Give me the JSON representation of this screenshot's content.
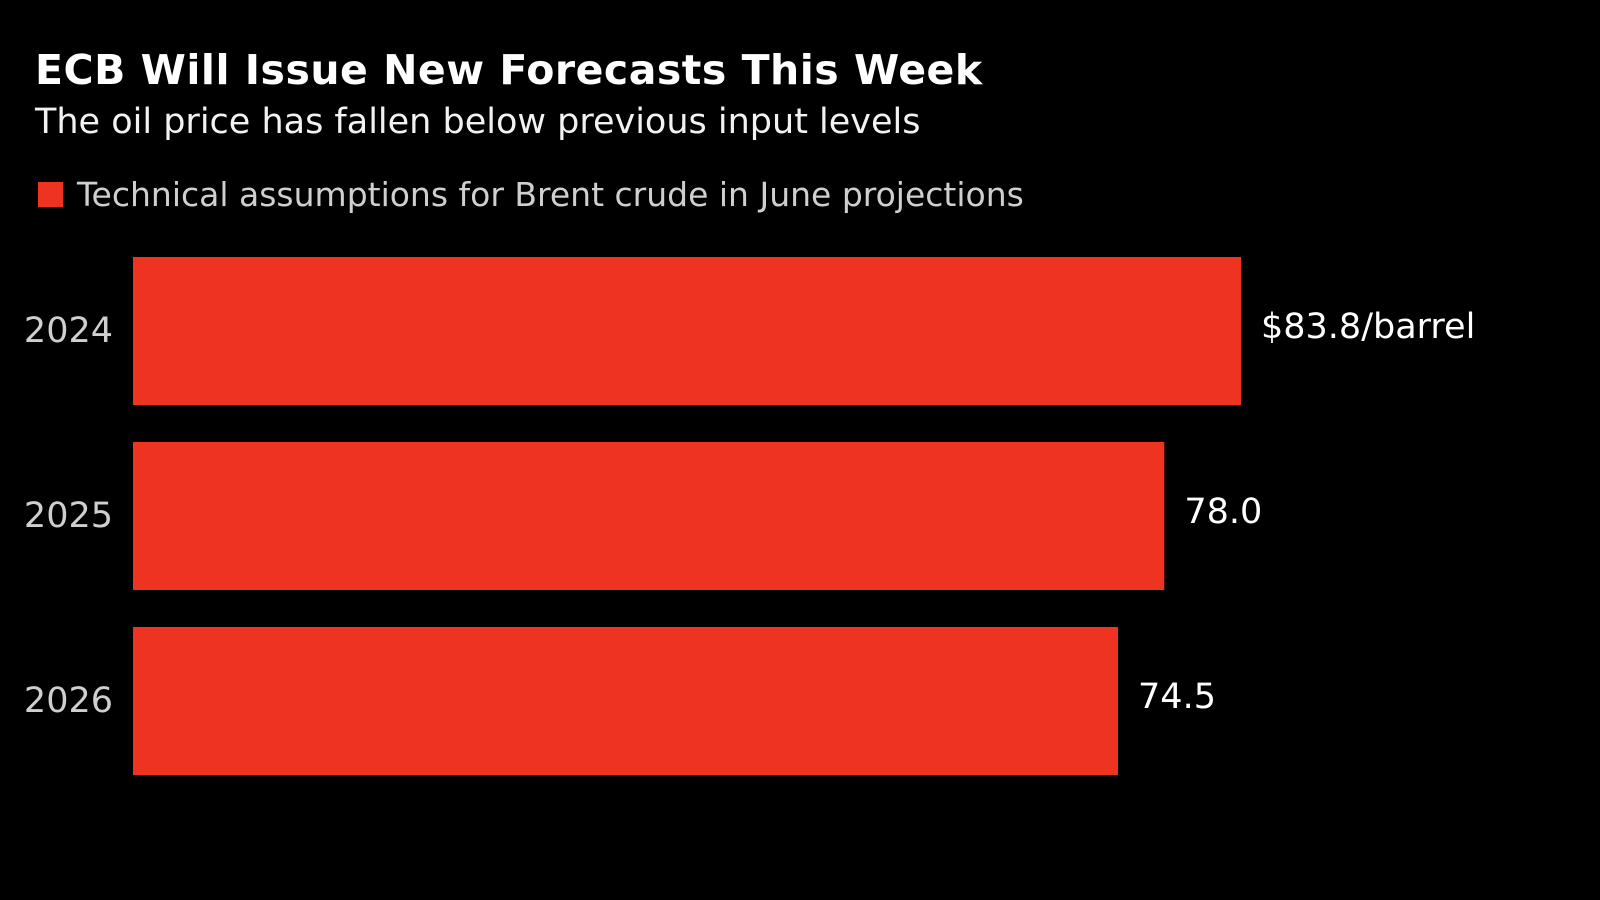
{
  "colors": {
    "background": "#000000",
    "bar": "#ee3420",
    "text": "#ffffff",
    "muted_text": "#cfcfcf"
  },
  "chart_data": {
    "type": "bar",
    "orientation": "horizontal",
    "title": "ECB Will Issue New Forecasts This Week",
    "subtitle": "The oil price has fallen below previous input levels",
    "legend": "top-left",
    "grid": false,
    "categories": [
      "2024",
      "2025",
      "2026"
    ],
    "series": [
      {
        "name": "Technical assumptions for Brent crude in June projections",
        "values": [
          83.8,
          78.0,
          74.5
        ]
      }
    ],
    "data_labels": [
      "$83.8/barrel",
      "78.0",
      "74.5"
    ],
    "xlim": [
      0,
      83.8
    ]
  }
}
